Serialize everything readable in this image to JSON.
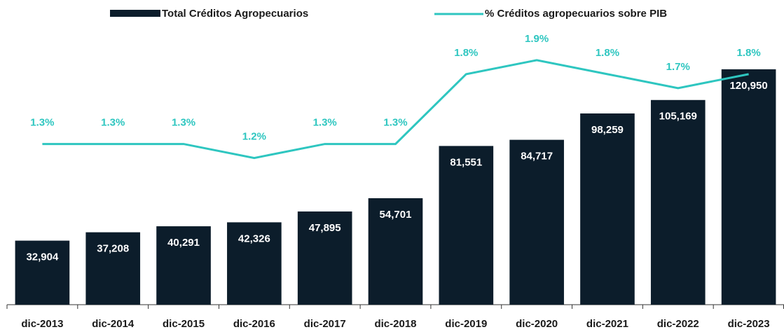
{
  "chart_data": {
    "type": "bar-line",
    "categories": [
      "dic-2013",
      "dic-2014",
      "dic-2015",
      "dic-2016",
      "dic-2017",
      "dic-2018",
      "dic-2019",
      "dic-2020",
      "dic-2021",
      "dic-2022",
      "dic-2023"
    ],
    "series": [
      {
        "name": "Total Créditos Agropecuarios",
        "type": "bar",
        "color": "#0c1d2b",
        "values": [
          32904,
          37208,
          40291,
          42326,
          47895,
          54701,
          81551,
          84717,
          98259,
          105169,
          120950
        ],
        "value_labels": [
          "32,904",
          "37,208",
          "40,291",
          "42,326",
          "47,895",
          "54,701",
          "81,551",
          "84,717",
          "98,259",
          "105,169",
          "120,950"
        ]
      },
      {
        "name": "% Créditos agropecuarios sobre PIB",
        "type": "line",
        "axis": "y2",
        "color": "#2ec6c0",
        "values": [
          1.3,
          1.3,
          1.3,
          1.2,
          1.3,
          1.3,
          1.8,
          1.9,
          1.8,
          1.7,
          1.8
        ],
        "value_labels": [
          "1.3%",
          "1.3%",
          "1.3%",
          "1.2%",
          "1.3%",
          "1.3%",
          "1.8%",
          "1.9%",
          "1.8%",
          "1.7%",
          "1.8%"
        ]
      }
    ],
    "ylim": [
      0,
      140000
    ],
    "y2lim": [
      0.15,
      2.1
    ],
    "legend": "top"
  }
}
